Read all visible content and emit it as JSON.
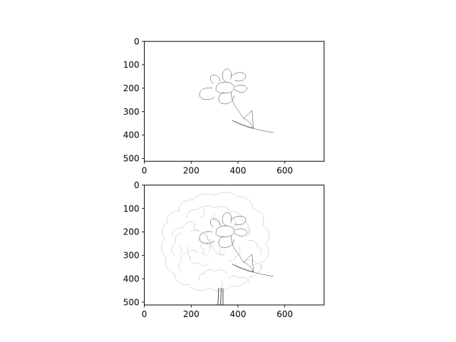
{
  "chart_data": [
    {
      "type": "image",
      "content": "sketch",
      "xlim": [
        0,
        768
      ],
      "ylim": [
        512,
        0
      ],
      "xticks": [
        0,
        200,
        400,
        600
      ],
      "yticks": [
        0,
        100,
        200,
        300,
        400,
        500
      ]
    },
    {
      "type": "image",
      "content": "sketch-overlay-on-photo",
      "xlim": [
        0,
        768
      ],
      "ylim": [
        512,
        0
      ],
      "xticks": [
        0,
        200,
        400,
        600
      ],
      "yticks": [
        0,
        100,
        200,
        300,
        400,
        500
      ]
    }
  ]
}
